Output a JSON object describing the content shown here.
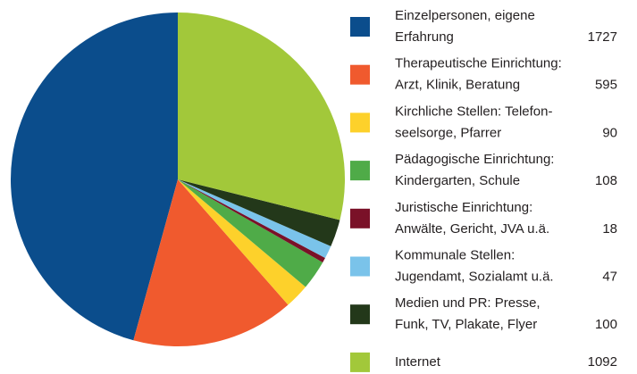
{
  "chart_data": {
    "type": "pie",
    "labels": [
      [
        "Einzelpersonen, eigene",
        "Erfahrung"
      ],
      [
        "Therapeutische Einrichtung:",
        "Arzt, Klinik, Beratung"
      ],
      [
        "Kirchliche Stellen: Telefon-",
        "seelsorge, Pfarrer"
      ],
      [
        "Pädagogische Einrichtung:",
        "Kindergarten, Schule"
      ],
      [
        "Juristische Einrichtung:",
        "Anwälte, Gericht, JVA u.ä."
      ],
      [
        "Kommunale Stellen:",
        "Jugendamt, Sozialamt u.ä."
      ],
      [
        "Medien und PR: Presse,",
        "Funk, TV, Plakate, Flyer"
      ],
      [
        "Internet"
      ]
    ],
    "values": [
      1727,
      595,
      90,
      108,
      18,
      47,
      100,
      1092
    ],
    "colors": [
      "#0b4d8c",
      "#f05a2e",
      "#fdd12b",
      "#4fab48",
      "#7a1128",
      "#7ac3ea",
      "#23381a",
      "#a2c83a"
    ]
  }
}
